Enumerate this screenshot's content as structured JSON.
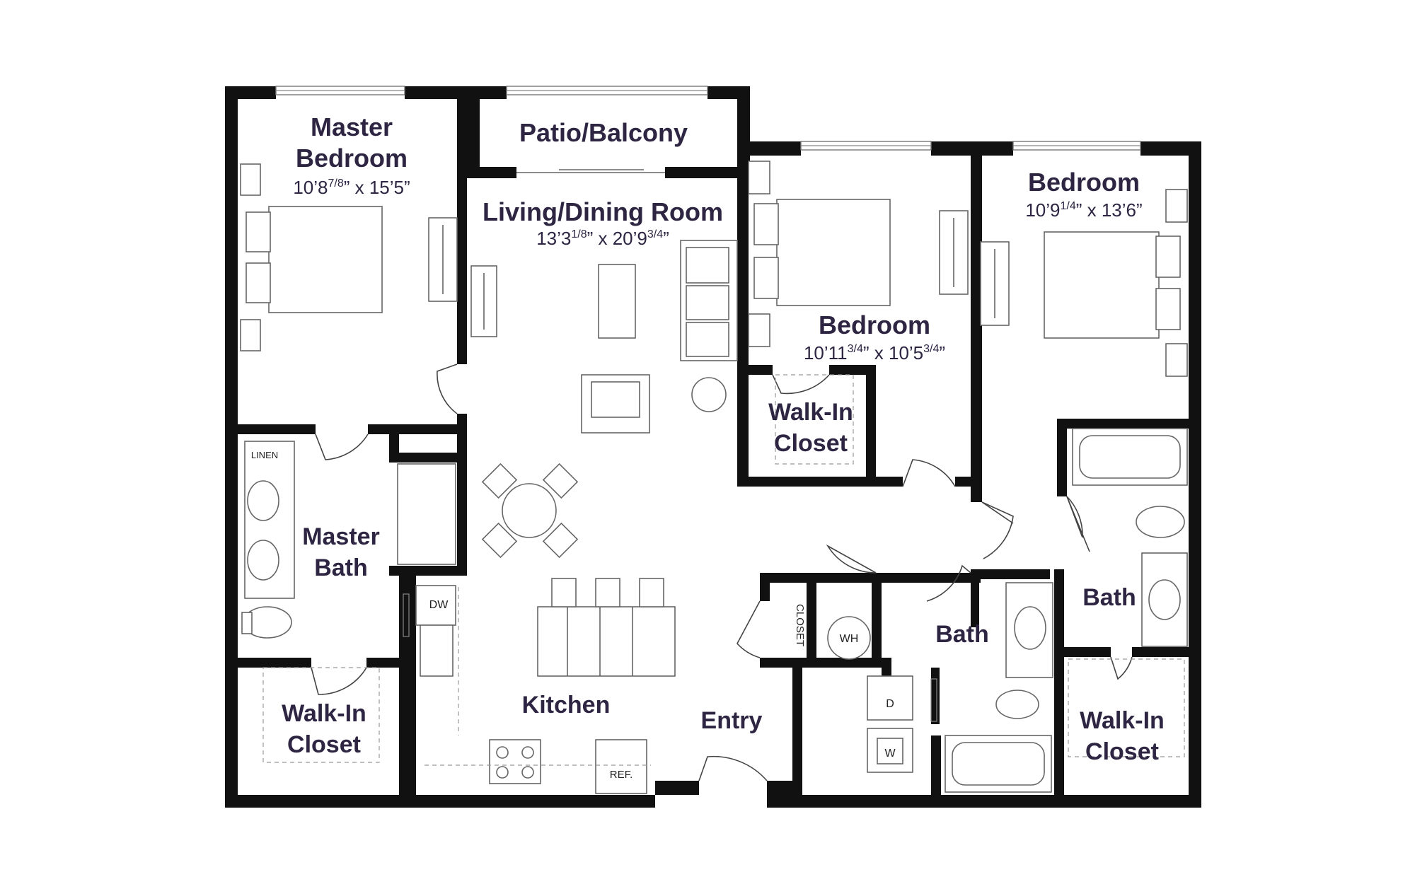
{
  "rooms": {
    "master_bedroom": {
      "name_line1": "Master",
      "name_line2": "Bedroom",
      "dim_a": "10’8",
      "dim_a_frac": "7/8",
      "dim_b": "” x 15’5”"
    },
    "patio": {
      "name": "Patio/Balcony"
    },
    "living": {
      "name": "Living/Dining Room",
      "dim_a": "13’3",
      "dim_a_frac": "1/8",
      "dim_b": "” x 20’9",
      "dim_b_frac": "3/4",
      "dim_c": "”"
    },
    "bedroom_mid": {
      "name": "Bedroom",
      "dim_a": "10’11",
      "dim_a_frac": "3/4",
      "dim_b": "” x 10’5",
      "dim_b_frac": "3/4",
      "dim_c": "”"
    },
    "bedroom_right": {
      "name": "Bedroom",
      "dim_a": "10’9",
      "dim_a_frac": "1/4",
      "dim_b": "” x 13’6”"
    },
    "walkin_mid": {
      "line1": "Walk-In",
      "line2": "Closet"
    },
    "master_bath": {
      "line1": "Master",
      "line2": "Bath"
    },
    "walkin_master": {
      "line1": "Walk-In",
      "line2": "Closet"
    },
    "kitchen": {
      "name": "Kitchen"
    },
    "entry": {
      "name": "Entry"
    },
    "bath_mid": {
      "name": "Bath"
    },
    "bath_right": {
      "name": "Bath"
    },
    "walkin_right": {
      "line1": "Walk-In",
      "line2": "Closet"
    }
  },
  "fixtures": {
    "linen": "LINEN",
    "dw": "DW",
    "closet": "CLOSET",
    "wh": "WH",
    "dryer": "D",
    "washer": "W",
    "ref": "REF."
  },
  "colors": {
    "wall": "#111111",
    "label": "#2d2542"
  }
}
